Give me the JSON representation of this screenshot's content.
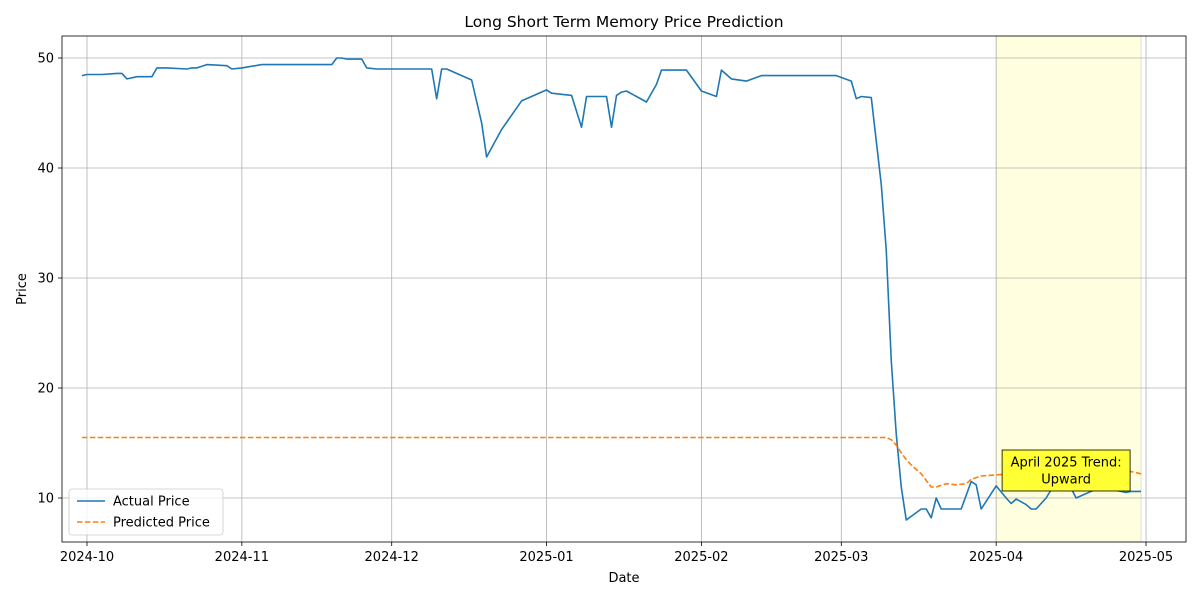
{
  "chart_data": {
    "type": "line",
    "title": "Long Short Term Memory Price Prediction",
    "xlabel": "Date",
    "ylabel": "Price",
    "xlim": [
      "2024-09-26",
      "2025-05-09"
    ],
    "ylim": [
      6,
      52
    ],
    "xticks": [
      "2024-10-01",
      "2024-11-01",
      "2024-12-01",
      "2025-01-01",
      "2025-02-01",
      "2025-03-01",
      "2025-04-01",
      "2025-05-01"
    ],
    "xtick_labels": [
      "2024-10",
      "2024-11",
      "2024-12",
      "2025-01",
      "2025-02",
      "2025-03",
      "2025-04",
      "2025-05"
    ],
    "yticks": [
      10,
      20,
      30,
      40,
      50
    ],
    "grid": true,
    "legend_position": "lower-left",
    "highlight": {
      "start": "2025-04-01",
      "end": "2025-04-30",
      "color": "#ffffe0"
    },
    "annotation": {
      "text_lines": [
        "April 2025 Trend:",
        "Upward"
      ],
      "date": "2025-04-15",
      "value": 12.5,
      "box_color": "#ffff33"
    },
    "series": [
      {
        "name": "Actual Price",
        "color": "#1f77b4",
        "style": "solid",
        "points": [
          [
            "2024-09-30",
            48.4
          ],
          [
            "2024-10-01",
            48.5
          ],
          [
            "2024-10-04",
            48.5
          ],
          [
            "2024-10-07",
            48.6
          ],
          [
            "2024-10-08",
            48.6
          ],
          [
            "2024-10-09",
            48.1
          ],
          [
            "2024-10-11",
            48.3
          ],
          [
            "2024-10-14",
            48.3
          ],
          [
            "2024-10-15",
            49.1
          ],
          [
            "2024-10-17",
            49.1
          ],
          [
            "2024-10-21",
            49.0
          ],
          [
            "2024-10-22",
            49.1
          ],
          [
            "2024-10-23",
            49.1
          ],
          [
            "2024-10-25",
            49.4
          ],
          [
            "2024-10-29",
            49.3
          ],
          [
            "2024-10-30",
            49.0
          ],
          [
            "2024-11-01",
            49.1
          ],
          [
            "2024-11-05",
            49.4
          ],
          [
            "2024-11-19",
            49.4
          ],
          [
            "2024-11-20",
            50.0
          ],
          [
            "2024-11-21",
            50.0
          ],
          [
            "2024-11-22",
            49.9
          ],
          [
            "2024-11-25",
            49.9
          ],
          [
            "2024-11-26",
            49.1
          ],
          [
            "2024-11-28",
            49.0
          ],
          [
            "2024-12-09",
            49.0
          ],
          [
            "2024-12-10",
            46.3
          ],
          [
            "2024-12-11",
            49.0
          ],
          [
            "2024-12-12",
            49.0
          ],
          [
            "2024-12-17",
            48.0
          ],
          [
            "2024-12-19",
            44.1
          ],
          [
            "2024-12-20",
            41.0
          ],
          [
            "2024-12-23",
            43.5
          ],
          [
            "2024-12-27",
            46.1
          ],
          [
            "2025-01-01",
            47.1
          ],
          [
            "2025-01-02",
            46.8
          ],
          [
            "2025-01-06",
            46.6
          ],
          [
            "2025-01-08",
            43.7
          ],
          [
            "2025-01-09",
            46.5
          ],
          [
            "2025-01-13",
            46.5
          ],
          [
            "2025-01-14",
            43.7
          ],
          [
            "2025-01-15",
            46.6
          ],
          [
            "2025-01-16",
            46.9
          ],
          [
            "2025-01-17",
            47.0
          ],
          [
            "2025-01-21",
            46.0
          ],
          [
            "2025-01-23",
            47.6
          ],
          [
            "2025-01-24",
            48.9
          ],
          [
            "2025-01-29",
            48.9
          ],
          [
            "2025-02-01",
            47.0
          ],
          [
            "2025-02-04",
            46.5
          ],
          [
            "2025-02-05",
            48.9
          ],
          [
            "2025-02-07",
            48.1
          ],
          [
            "2025-02-10",
            47.9
          ],
          [
            "2025-02-13",
            48.4
          ],
          [
            "2025-02-14",
            48.4
          ],
          [
            "2025-02-28",
            48.4
          ],
          [
            "2025-03-03",
            47.9
          ],
          [
            "2025-03-04",
            46.3
          ],
          [
            "2025-03-05",
            46.5
          ],
          [
            "2025-03-07",
            46.4
          ],
          [
            "2025-03-09",
            38.5
          ],
          [
            "2025-03-10",
            32.5
          ],
          [
            "2025-03-11",
            22.5
          ],
          [
            "2025-03-12",
            15.8
          ],
          [
            "2025-03-13",
            11.0
          ],
          [
            "2025-03-14",
            8.0
          ],
          [
            "2025-03-17",
            9.0
          ],
          [
            "2025-03-18",
            9.0
          ],
          [
            "2025-03-19",
            8.2
          ],
          [
            "2025-03-20",
            10.0
          ],
          [
            "2025-03-21",
            9.0
          ],
          [
            "2025-03-25",
            9.0
          ],
          [
            "2025-03-27",
            11.5
          ],
          [
            "2025-03-28",
            11.2
          ],
          [
            "2025-03-29",
            9.0
          ],
          [
            "2025-04-01",
            11.1
          ],
          [
            "2025-04-03",
            10.0
          ],
          [
            "2025-04-04",
            9.5
          ],
          [
            "2025-04-05",
            9.9
          ],
          [
            "2025-04-07",
            9.4
          ],
          [
            "2025-04-08",
            9.0
          ],
          [
            "2025-04-09",
            9.0
          ],
          [
            "2025-04-11",
            10.0
          ],
          [
            "2025-04-13",
            11.5
          ],
          [
            "2025-04-16",
            10.9
          ],
          [
            "2025-04-17",
            10.0
          ],
          [
            "2025-04-21",
            10.8
          ],
          [
            "2025-04-23",
            11.0
          ],
          [
            "2025-04-25",
            10.7
          ],
          [
            "2025-04-27",
            10.5
          ],
          [
            "2025-04-28",
            10.6
          ],
          [
            "2025-04-30",
            10.6
          ]
        ]
      },
      {
        "name": "Predicted Price",
        "color": "#ff7f0e",
        "style": "dashed",
        "points": [
          [
            "2024-09-30",
            15.5
          ],
          [
            "2025-03-10",
            15.5
          ],
          [
            "2025-03-11",
            15.3
          ],
          [
            "2025-03-12",
            14.8
          ],
          [
            "2025-03-13",
            14.1
          ],
          [
            "2025-03-14",
            13.5
          ],
          [
            "2025-03-15",
            13.0
          ],
          [
            "2025-03-17",
            12.2
          ],
          [
            "2025-03-19",
            11.0
          ],
          [
            "2025-03-20",
            11.0
          ],
          [
            "2025-03-22",
            11.3
          ],
          [
            "2025-03-24",
            11.2
          ],
          [
            "2025-03-26",
            11.3
          ],
          [
            "2025-03-27",
            11.7
          ],
          [
            "2025-03-29",
            12.0
          ],
          [
            "2025-04-01",
            12.1
          ],
          [
            "2025-04-07",
            12.3
          ],
          [
            "2025-04-09",
            11.8
          ],
          [
            "2025-04-10",
            11.6
          ],
          [
            "2025-04-14",
            11.8
          ],
          [
            "2025-04-18",
            12.2
          ],
          [
            "2025-04-22",
            12.4
          ],
          [
            "2025-04-26",
            12.5
          ],
          [
            "2025-04-28",
            12.4
          ],
          [
            "2025-04-30",
            12.2
          ]
        ]
      }
    ]
  }
}
